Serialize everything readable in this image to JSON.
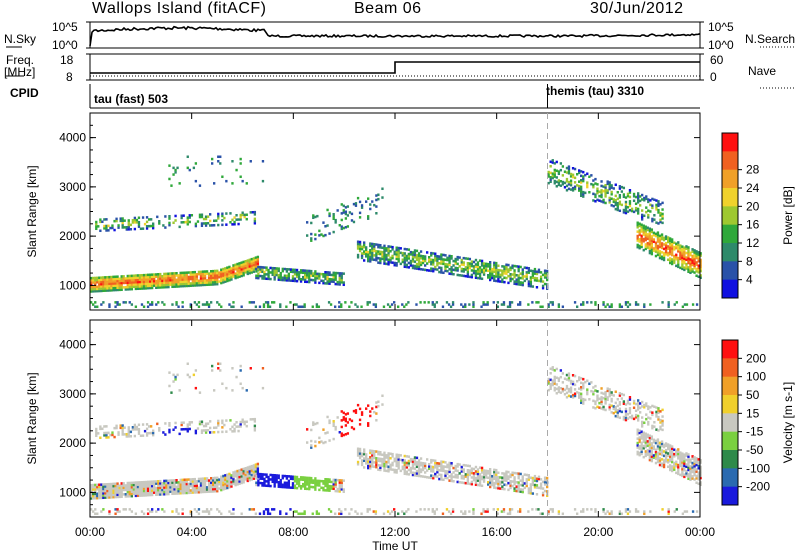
{
  "header": {
    "station": "Wallops Island (fitACF)",
    "beam": "Beam 06",
    "date": "30/Jun/2012"
  },
  "strip_labels": {
    "nsky": "N.Sky",
    "nsky_top": "10^5",
    "nsky_bottom": "10^0",
    "nsearch": "N.Search",
    "nsearch_top": "10^5",
    "nsearch_bottom": "10^0",
    "freq": "Freq.",
    "freq_unit": "[MHz]",
    "freq_top": "18",
    "freq_bottom": "8",
    "nave": "Nave",
    "nave_top": "60",
    "nave_bottom": "0",
    "cpid": "CPID",
    "mode1": "tau (fast) 503",
    "mode2": "themis (tau) 3310"
  },
  "chart_data": [
    {
      "type": "heatmap",
      "name": "power-panel",
      "ylabel": "Slant Range [km]",
      "y_ticks": [
        "1000",
        "2000",
        "3000",
        "4000"
      ],
      "ylim": [
        500,
        4500
      ],
      "colorbar_label": "Power [dB]",
      "colorbar_ticks": [
        "4",
        "8",
        "12",
        "16",
        "20",
        "24",
        "28"
      ],
      "colorbar_colors": [
        "#1010e0",
        "#2a52a8",
        "#2e8a6a",
        "#2fa83a",
        "#9ec830",
        "#f0d22c",
        "#f0a028",
        "#f06020",
        "#ff1010"
      ]
    },
    {
      "type": "heatmap",
      "name": "velocity-panel",
      "ylabel": "Slant Range [km]",
      "y_ticks": [
        "1000",
        "2000",
        "3000",
        "4000"
      ],
      "ylim": [
        500,
        4500
      ],
      "colorbar_label": "Velocity [m s-1]",
      "colorbar_ticks": [
        "200",
        "100",
        "50",
        "15",
        "-15",
        "-50",
        "-100",
        "-200"
      ],
      "colorbar_colors": [
        "#1a1adc",
        "#2a6ab0",
        "#2e8a4a",
        "#7ad040",
        "#c8c8c0",
        "#f0d02c",
        "#f0a028",
        "#f06020",
        "#ff1010"
      ]
    }
  ],
  "x_axis": {
    "label": "Time UT",
    "ticks": [
      "00:00",
      "04:00",
      "08:00",
      "12:00",
      "16:00",
      "20:00",
      "00:00"
    ]
  },
  "colors": {
    "ground_scatter": "#c8c8c0"
  }
}
